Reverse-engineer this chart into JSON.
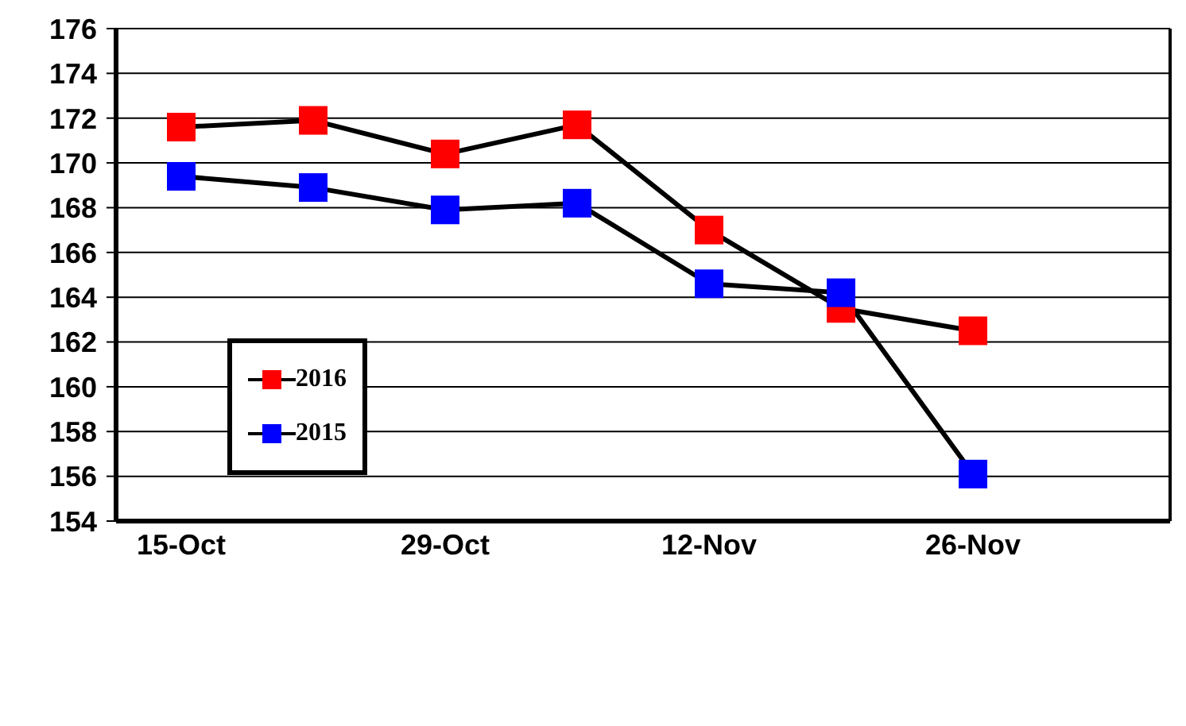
{
  "chart_data": {
    "type": "line",
    "categories": [
      "15-Oct",
      null,
      "29-Oct",
      null,
      "12-Nov",
      null,
      "26-Nov",
      null
    ],
    "series": [
      {
        "name": "2016",
        "color": "#ff0000",
        "values": [
          171.6,
          171.9,
          170.4,
          171.7,
          167.0,
          163.5,
          162.5,
          null
        ]
      },
      {
        "name": "2015",
        "color": "#0000ff",
        "values": [
          169.4,
          168.9,
          167.9,
          168.2,
          164.6,
          164.2,
          156.1,
          null
        ]
      }
    ],
    "ylim": [
      154,
      176
    ],
    "yticks": [
      154,
      156,
      158,
      160,
      162,
      164,
      166,
      168,
      170,
      172,
      174,
      176
    ],
    "grid": "y",
    "legend": "left",
    "marker": "square",
    "line_style": "solid"
  }
}
